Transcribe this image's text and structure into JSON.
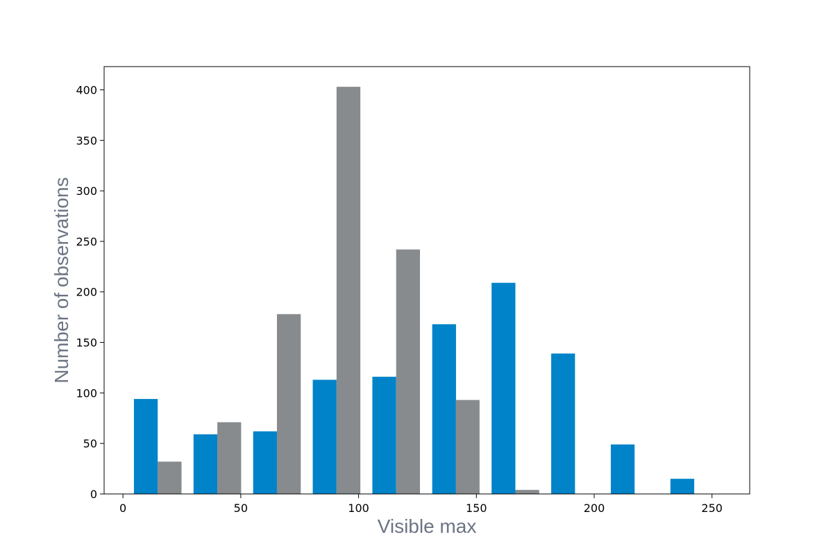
{
  "chart_data": {
    "type": "bar",
    "xlabel": "Visible max",
    "ylabel": "Number of observations",
    "xlim": [
      -8,
      266
    ],
    "ylim": [
      0,
      423
    ],
    "xticks": [
      0,
      50,
      100,
      150,
      200,
      250
    ],
    "yticks": [
      0,
      50,
      100,
      150,
      200,
      250,
      300,
      350,
      400
    ],
    "grid": false,
    "legend": "none",
    "bar_width": 10.1,
    "series": [
      {
        "color": "#0083c8",
        "x": [
          9.7,
          35.0,
          60.3,
          85.6,
          110.9,
          136.3,
          161.5,
          186.8,
          212.1,
          237.4
        ],
        "values": [
          94,
          59,
          62,
          113,
          116,
          168,
          209,
          139,
          49,
          15
        ]
      },
      {
        "color": "#878b8e",
        "x": [
          19.8,
          45.1,
          70.4,
          95.7,
          121.0,
          146.3,
          171.6,
          196.9,
          222.2,
          247.5
        ],
        "values": [
          32,
          71,
          178,
          403,
          242,
          93,
          4,
          0,
          0,
          0
        ]
      }
    ]
  }
}
